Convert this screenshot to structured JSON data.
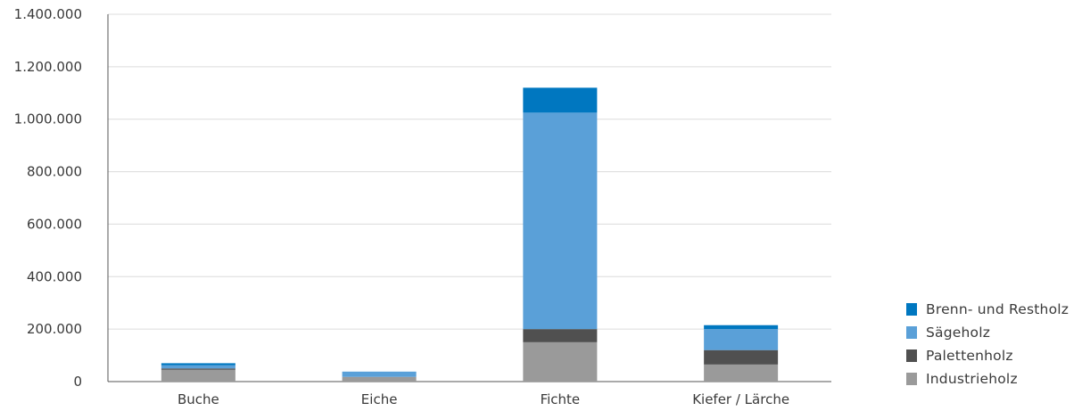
{
  "chart_data": {
    "type": "bar",
    "stacked": true,
    "categories": [
      "Buche",
      "Eiche",
      "Fichte",
      "Kiefer / Lärche"
    ],
    "series": [
      {
        "name": "Industrieholz",
        "color": "#9a9a9a",
        "values": [
          45000,
          18000,
          150000,
          65000
        ]
      },
      {
        "name": "Palettenholz",
        "color": "#505050",
        "values": [
          5000,
          0,
          50000,
          55000
        ]
      },
      {
        "name": "Sägeholz",
        "color": "#5aa0d8",
        "values": [
          12000,
          20000,
          825000,
          80000
        ]
      },
      {
        "name": "Brenn- und Restholz",
        "color": "#0077c0",
        "values": [
          8000,
          0,
          95000,
          15000
        ]
      }
    ],
    "yticks": [
      "0",
      "200.000",
      "400.000",
      "600.000",
      "800.000",
      "1.000.000",
      "1.200.000",
      "1.400.000"
    ],
    "ylim": [
      0,
      1400000
    ],
    "grid": true,
    "legend_position": "bottom-right",
    "legend": [
      "Brenn- und Restholz",
      "Sägeholz",
      "Palettenholz",
      "Industrieholz"
    ]
  }
}
